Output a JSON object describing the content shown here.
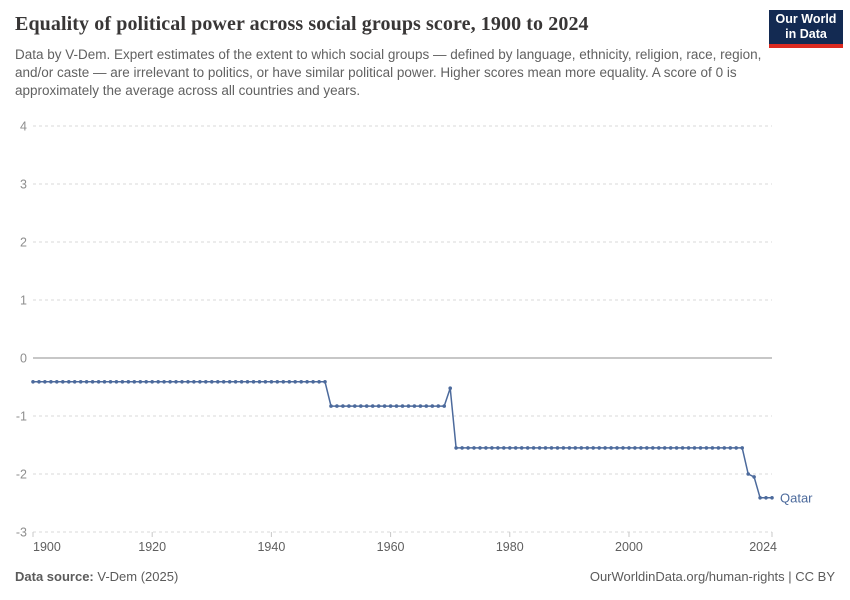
{
  "header": {
    "title": "Equality of political power across social groups score, 1900 to 2024",
    "subtitle": "Data by V-Dem. Expert estimates of the extent to which social groups — defined by language, ethnicity, religion, race, region, and/or caste — are irrelevant to politics, or have similar political power. Higher scores mean more equality. A score of 0 is approximately the average across all countries and years.",
    "logo": {
      "line1": "Our World",
      "line2": "in Data",
      "bg": "#132A52",
      "stripe": "#DC2A20"
    }
  },
  "chart_data": {
    "type": "line",
    "title": "Equality of political power across social groups score, 1900 to 2024",
    "xlabel": "",
    "ylabel": "",
    "xlim": [
      1900,
      2024
    ],
    "ylim": [
      -3,
      4
    ],
    "x_ticks": [
      1900,
      1920,
      1940,
      1960,
      1980,
      2000,
      2024
    ],
    "y_ticks": [
      4,
      3,
      2,
      1,
      0,
      -1,
      -2,
      -3
    ],
    "grid": "dashed horizontal, solid zero line",
    "legend": "inline label at line end",
    "colors": {
      "grid": "#d9d9d9",
      "zero_line": "#8f8f8f",
      "y_label": "#8e8e8e",
      "x_label": "#5f5f5f",
      "tick": "#c8c8c8"
    },
    "series": [
      {
        "name": "Qatar",
        "color": "#4C6A9C",
        "x_start": 1900,
        "x_end": 2024,
        "values": [
          -0.41,
          -0.41,
          -0.41,
          -0.41,
          -0.41,
          -0.41,
          -0.41,
          -0.41,
          -0.41,
          -0.41,
          -0.41,
          -0.41,
          -0.41,
          -0.41,
          -0.41,
          -0.41,
          -0.41,
          -0.41,
          -0.41,
          -0.41,
          -0.41,
          -0.41,
          -0.41,
          -0.41,
          -0.41,
          -0.41,
          -0.41,
          -0.41,
          -0.41,
          -0.41,
          -0.41,
          -0.41,
          -0.41,
          -0.41,
          -0.41,
          -0.41,
          -0.41,
          -0.41,
          -0.41,
          -0.41,
          -0.41,
          -0.41,
          -0.41,
          -0.41,
          -0.41,
          -0.41,
          -0.41,
          -0.41,
          -0.41,
          -0.41,
          -0.83,
          -0.83,
          -0.83,
          -0.83,
          -0.83,
          -0.83,
          -0.83,
          -0.83,
          -0.83,
          -0.83,
          -0.83,
          -0.83,
          -0.83,
          -0.83,
          -0.83,
          -0.83,
          -0.83,
          -0.83,
          -0.83,
          -0.83,
          -0.52,
          -1.55,
          -1.55,
          -1.55,
          -1.55,
          -1.55,
          -1.55,
          -1.55,
          -1.55,
          -1.55,
          -1.55,
          -1.55,
          -1.55,
          -1.55,
          -1.55,
          -1.55,
          -1.55,
          -1.55,
          -1.55,
          -1.55,
          -1.55,
          -1.55,
          -1.55,
          -1.55,
          -1.55,
          -1.55,
          -1.55,
          -1.55,
          -1.55,
          -1.55,
          -1.55,
          -1.55,
          -1.55,
          -1.55,
          -1.55,
          -1.55,
          -1.55,
          -1.55,
          -1.55,
          -1.55,
          -1.55,
          -1.55,
          -1.55,
          -1.55,
          -1.55,
          -1.55,
          -1.55,
          -1.55,
          -1.55,
          -1.55,
          -2.0,
          -2.05,
          -2.41,
          -2.41,
          -2.41
        ]
      }
    ]
  },
  "footer": {
    "source_label": "Data source:",
    "source_value": " V-Dem (2025)",
    "credit": "OurWorldinData.org/human-rights | CC BY"
  }
}
